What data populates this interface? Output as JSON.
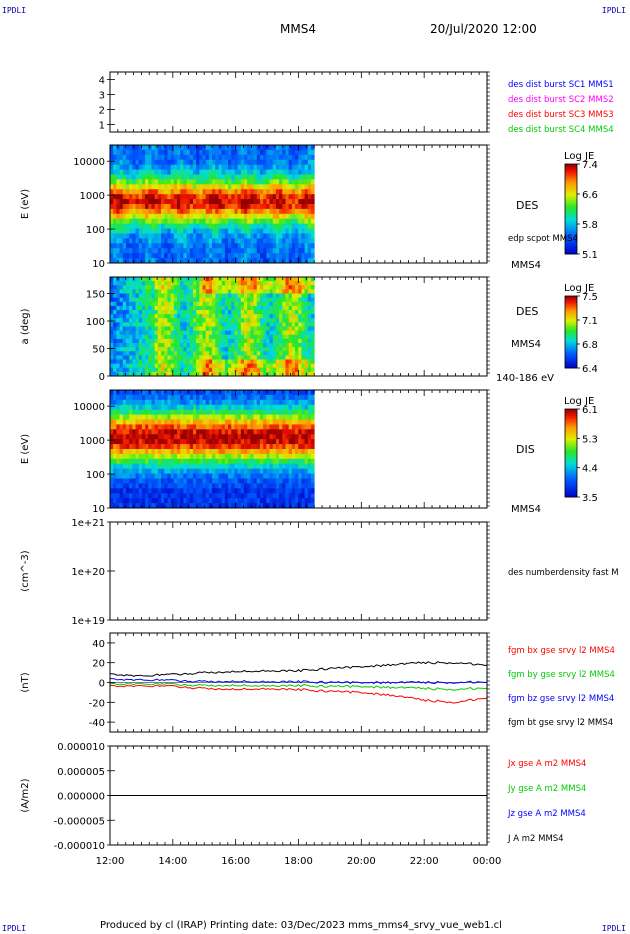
{
  "header": {
    "corner_left_top": "IPDLI",
    "corner_right_top": "IPDLI",
    "title": "MMS4",
    "date": "20/Jul/2020 12:00"
  },
  "footer": {
    "text": "Produced by cl (IRAP)   Printing date: 03/Dec/2023   mms_mms4_srvy_vue_web1.cl",
    "corner_left_bottom": "IPDLI",
    "corner_right_bottom": "IPDLI"
  },
  "x_axis": {
    "tick_labels": [
      "12:00",
      "14:00",
      "16:00",
      "18:00",
      "20:00",
      "22:00",
      "00:00"
    ],
    "tick_hours": [
      0,
      2,
      4,
      6,
      8,
      10,
      12
    ]
  },
  "chart_data": [
    {
      "type": "line",
      "panel": "burst",
      "ylim": [
        0.5,
        4.5
      ],
      "yticks": [
        1,
        2,
        3,
        4
      ],
      "ytick_labels": [
        "1",
        "2",
        "3",
        "4"
      ],
      "legend": [
        {
          "text": "des dist burst SC1 MMS1",
          "color": "#0000ff"
        },
        {
          "text": "des dist burst SC2 MMS2",
          "color": "#ff00ff"
        },
        {
          "text": "des dist burst SC3 MMS3",
          "color": "#ff0000"
        },
        {
          "text": "des dist burst SC4 MMS4",
          "color": "#00cc00"
        }
      ]
    },
    {
      "type": "heatmap",
      "panel": "des-energy",
      "ylabel": "E (eV)",
      "yscale": "log",
      "ylim": [
        10,
        30000
      ],
      "yticks": [
        10,
        100,
        1000,
        10000
      ],
      "ytick_labels": [
        "10",
        "100",
        "1000",
        "10000"
      ],
      "data_end_hour": 6.5,
      "label": "DES",
      "side_note": "edp scpot MMS4",
      "sc_label": "MMS4",
      "colorbar": {
        "title": "Log JE",
        "min": 5.1,
        "max": 7.4,
        "ticks": [
          "5.1",
          "5.8",
          "6.6",
          "7.4"
        ]
      }
    },
    {
      "type": "heatmap",
      "panel": "des-pitch",
      "ylabel": "a (deg)",
      "ylim": [
        0,
        180
      ],
      "yticks": [
        0,
        50,
        100,
        150
      ],
      "ytick_labels": [
        "0",
        "50",
        "100",
        "150"
      ],
      "data_end_hour": 6.5,
      "label": "DES",
      "sc_label": "MMS4",
      "energy_range": "140-186 eV",
      "colorbar": {
        "title": "Log JE",
        "min": 6.4,
        "max": 7.5,
        "ticks": [
          "6.4",
          "6.8",
          "7.1",
          "7.5"
        ]
      }
    },
    {
      "type": "heatmap",
      "panel": "dis-energy",
      "ylabel": "E (eV)",
      "yscale": "log",
      "ylim": [
        10,
        30000
      ],
      "yticks": [
        10,
        100,
        1000,
        10000
      ],
      "ytick_labels": [
        "10",
        "100",
        "1000",
        "10000"
      ],
      "data_end_hour": 6.5,
      "label": "DIS",
      "sc_label": "MMS4",
      "colorbar": {
        "title": "Log JE",
        "min": 3.5,
        "max": 6.1,
        "ticks": [
          "3.5",
          "4.4",
          "5.3",
          "6.1"
        ]
      }
    },
    {
      "type": "line",
      "panel": "density",
      "ylabel": "(cm^-3)",
      "yscale": "log",
      "ylim": [
        1e+19,
        1e+21
      ],
      "yticks": [
        1e+19,
        1e+20,
        1e+21
      ],
      "ytick_labels": [
        "1e+19",
        "1e+20",
        "1e+21"
      ],
      "legend": [
        {
          "text": "des numberdensity fast M",
          "color": "#000000"
        }
      ]
    },
    {
      "type": "line",
      "panel": "fgm",
      "ylabel": "(nT)",
      "ylim": [
        -50,
        50
      ],
      "yticks": [
        -40,
        -20,
        0,
        20,
        40
      ],
      "ytick_labels": [
        "-40",
        "-20",
        "0",
        "20",
        "40"
      ],
      "x_hours": [
        0,
        1,
        2,
        3,
        4,
        5,
        6,
        7,
        8,
        9,
        10,
        11,
        12
      ],
      "series": [
        {
          "name": "fgm bx gse srvy l2 MMS4",
          "color": "#ff0000",
          "values": [
            -4,
            -3,
            -4,
            -6,
            -7,
            -6,
            -7,
            -9,
            -10,
            -13,
            -18,
            -20,
            -15
          ]
        },
        {
          "name": "fgm by gse srvy l2 MMS4",
          "color": "#00cc00",
          "values": [
            -2,
            -1,
            -2,
            -3,
            -3,
            -3,
            -3,
            -4,
            -4,
            -5,
            -6,
            -7,
            -5
          ]
        },
        {
          "name": "fgm bz gse srvy l2 MMS4",
          "color": "#0000ff",
          "values": [
            3,
            3,
            2,
            1,
            1,
            1,
            1,
            0,
            0,
            0,
            0,
            0,
            1
          ]
        },
        {
          "name": "fgm bt gse srvy l2 MMS4",
          "color": "#000000",
          "values": [
            8,
            7,
            8,
            10,
            11,
            12,
            12,
            14,
            16,
            18,
            20,
            20,
            18
          ]
        }
      ]
    },
    {
      "type": "line",
      "panel": "current",
      "ylabel": "(A/m2)",
      "ylim": [
        -1e-05,
        1e-05
      ],
      "yticks": [
        -1e-05,
        -5e-06,
        0,
        5e-06,
        1e-05
      ],
      "ytick_labels": [
        "-0.000010",
        "-0.000005",
        "0.000000",
        "0.000005",
        "0.000010"
      ],
      "legend": [
        {
          "text": "Jx gse A m2 MMS4",
          "color": "#ff0000"
        },
        {
          "text": "Jy gse A m2 MMS4",
          "color": "#00cc00"
        },
        {
          "text": "Jz gse A m2 MMS4",
          "color": "#0000ff"
        },
        {
          "text": "J A m2 MMS4",
          "color": "#000000"
        }
      ]
    }
  ]
}
